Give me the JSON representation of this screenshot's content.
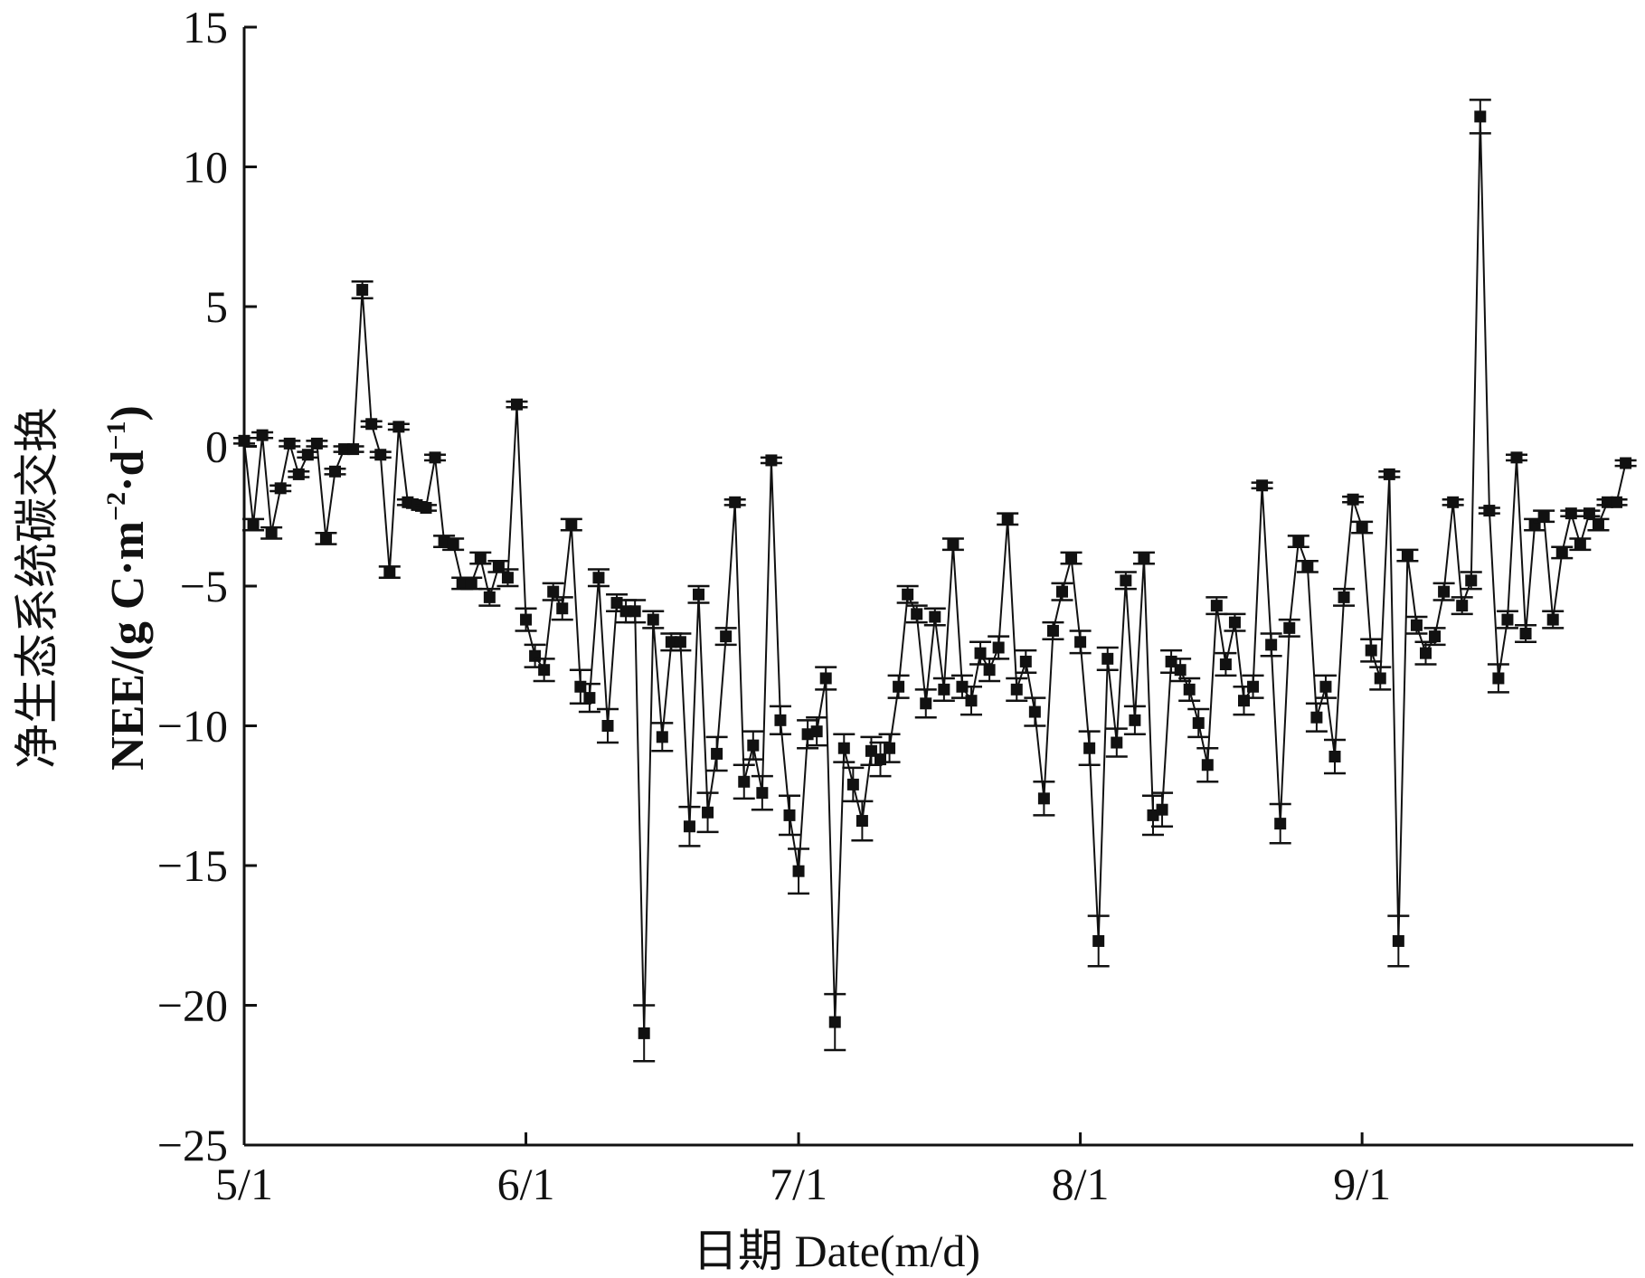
{
  "chart_data": {
    "type": "line",
    "title": "",
    "xlabel": "日期 Date(m/d)",
    "ylabel_cn": "净生态系统碳交换",
    "ylabel_en": "NEE/(g C·m",
    "ylabel_sup1": "−2",
    "ylabel_mid": "·d",
    "ylabel_sup2": "−1",
    "ylabel_end": ")",
    "x_start": "5/1",
    "x_ticks": [
      {
        "label": "5/1",
        "day": 0
      },
      {
        "label": "6/1",
        "day": 31
      },
      {
        "label": "7/1",
        "day": 61
      },
      {
        "label": "8/1",
        "day": 92
      },
      {
        "label": "9/1",
        "day": 123
      }
    ],
    "y_ticks": [
      15,
      10,
      5,
      0,
      -5,
      -10,
      -15,
      -20,
      -25
    ],
    "y_tick_labels": [
      "15",
      "10",
      "5",
      "0",
      "−5",
      "−10",
      "−15",
      "−20",
      "−25"
    ],
    "xlim": [
      0,
      153
    ],
    "ylim": [
      -25,
      15
    ],
    "grid": false,
    "legend": "none",
    "color": "#111111",
    "series": [
      {
        "values": [
          0.2,
          -2.8,
          0.4,
          -3.1,
          -1.5,
          0.1,
          -1.0,
          -0.3,
          0.1,
          -3.3,
          -0.9,
          -0.1,
          -0.1,
          5.6,
          0.8,
          -0.3,
          -4.5,
          0.7,
          -2.0,
          -2.1,
          -2.2,
          -0.4,
          -3.4,
          -3.5,
          -4.9,
          -4.9,
          -4.0,
          -5.4,
          -4.3,
          -4.7,
          1.5,
          -6.2,
          -7.5,
          -8.0,
          -5.2,
          -5.8,
          -2.8,
          -8.6,
          -9.0,
          -4.7,
          -10.0,
          -5.6,
          -5.9,
          -5.9,
          -21.0,
          -6.2,
          -10.4,
          -7.0,
          -7.0,
          -13.6,
          -5.3,
          -13.1,
          -11.0,
          -6.8,
          -2.0,
          -12.0,
          -10.7,
          -12.4,
          -0.5,
          -9.8,
          -13.2,
          -15.2,
          -10.3,
          -10.2,
          -8.3,
          -20.6,
          -10.8,
          -12.1,
          -13.4,
          -10.9,
          -11.2,
          -10.8,
          -8.6,
          -5.3,
          -6.0,
          -9.2,
          -6.1,
          -8.7,
          -3.5,
          -8.6,
          -9.1,
          -7.4,
          -8.0,
          -7.2,
          -2.6,
          -8.7,
          -7.7,
          -9.5,
          -12.6,
          -6.6,
          -5.2,
          -4.0,
          -7.0,
          -10.8,
          -17.7,
          -7.6,
          -10.6,
          -4.8,
          -9.8,
          -4.0,
          -13.2,
          -13.0,
          -7.7,
          -8.0,
          -8.7,
          -9.9,
          -11.4,
          -5.7,
          -7.8,
          -6.3,
          -9.1,
          -8.6,
          -1.4,
          -7.1,
          -13.5,
          -6.5,
          -3.4,
          -4.3,
          -9.7,
          -8.6,
          -11.1,
          -5.4,
          -1.9,
          -2.9,
          -7.3,
          -8.3,
          -1.0,
          -17.7,
          -3.9,
          -6.4,
          -7.4,
          -6.8,
          -5.2,
          -2.0,
          -5.7,
          -4.8,
          11.8,
          -2.3,
          -8.3,
          -6.2,
          -0.4,
          -6.7,
          -2.8,
          -2.5,
          -6.2,
          -3.8,
          -2.4,
          -3.5,
          -2.4,
          -2.8,
          -2.0,
          -2.0,
          -0.6
        ],
        "errors": [
          0.1,
          0.2,
          0.1,
          0.2,
          0.1,
          0.1,
          0.1,
          0.1,
          0.1,
          0.2,
          0.1,
          0.1,
          0.1,
          0.3,
          0.1,
          0.1,
          0.2,
          0.1,
          0.1,
          0.1,
          0.1,
          0.1,
          0.2,
          0.2,
          0.2,
          0.2,
          0.2,
          0.3,
          0.2,
          0.3,
          0.1,
          0.4,
          0.4,
          0.4,
          0.3,
          0.4,
          0.2,
          0.6,
          0.5,
          0.3,
          0.6,
          0.3,
          0.4,
          0.4,
          1.0,
          0.3,
          0.5,
          0.3,
          0.3,
          0.7,
          0.3,
          0.7,
          0.6,
          0.3,
          0.1,
          0.6,
          0.5,
          0.6,
          0.1,
          0.5,
          0.7,
          0.8,
          0.5,
          0.5,
          0.4,
          1.0,
          0.5,
          0.6,
          0.7,
          0.5,
          0.6,
          0.5,
          0.4,
          0.3,
          0.3,
          0.5,
          0.3,
          0.4,
          0.2,
          0.4,
          0.5,
          0.4,
          0.4,
          0.4,
          0.2,
          0.4,
          0.4,
          0.5,
          0.6,
          0.3,
          0.3,
          0.2,
          0.4,
          0.6,
          0.9,
          0.4,
          0.5,
          0.3,
          0.5,
          0.2,
          0.7,
          0.6,
          0.4,
          0.4,
          0.4,
          0.5,
          0.6,
          0.3,
          0.4,
          0.3,
          0.5,
          0.4,
          0.1,
          0.4,
          0.7,
          0.3,
          0.2,
          0.2,
          0.5,
          0.4,
          0.6,
          0.3,
          0.1,
          0.2,
          0.4,
          0.4,
          0.1,
          0.9,
          0.2,
          0.3,
          0.4,
          0.3,
          0.3,
          0.1,
          0.3,
          0.3,
          0.6,
          0.1,
          0.5,
          0.3,
          0.1,
          0.3,
          0.2,
          0.2,
          0.3,
          0.2,
          0.1,
          0.2,
          0.1,
          0.2,
          0.1,
          0.1,
          0.1
        ]
      }
    ]
  }
}
